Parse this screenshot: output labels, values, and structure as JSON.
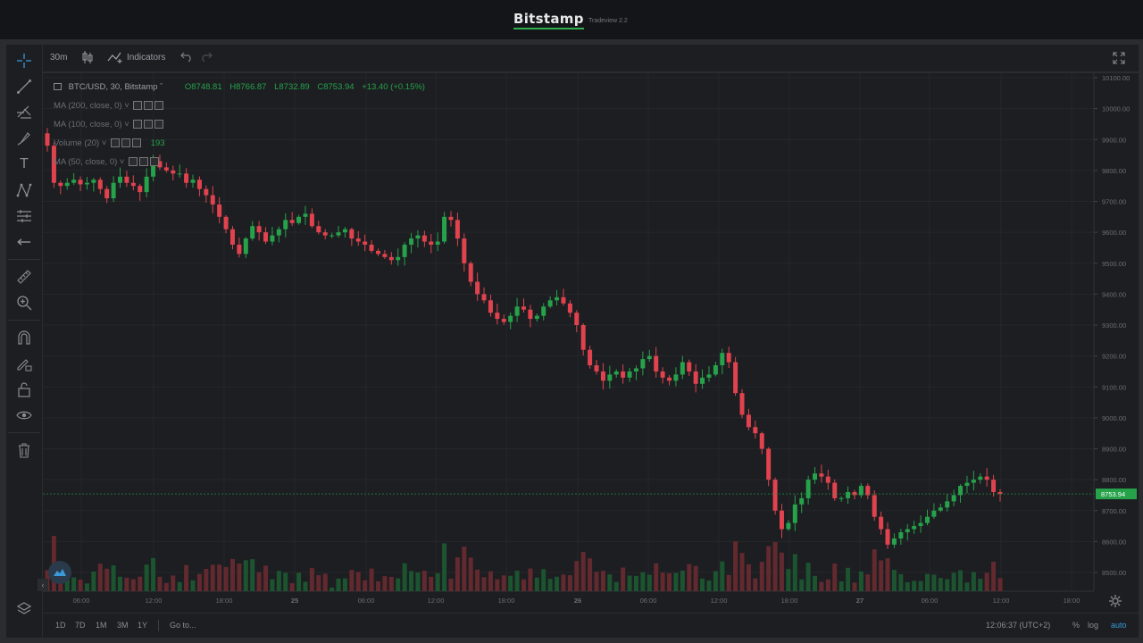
{
  "header": {
    "brand": "Bitstamp",
    "version": "Tradeview 2.2"
  },
  "toolbar": {
    "interval": "30m",
    "indicators_label": "Indicators"
  },
  "legend": {
    "symbol": "BTC/USD, 30, Bitstamp",
    "open": "O8748.81",
    "high": "H8766.87",
    "low": "L8732.89",
    "close": "C8753.94",
    "change": "+13.40 (+0.15%)",
    "studies": [
      {
        "label": "MA (200, close, 0)",
        "value": ""
      },
      {
        "label": "MA (100, close, 0)",
        "value": ""
      },
      {
        "label": "Volume (20)",
        "value": "193"
      },
      {
        "label": "MA (50, close, 0)",
        "value": ""
      }
    ]
  },
  "price_badge": "8753.94",
  "y_ticks": [
    "10100.00",
    "10000.00",
    "9900.00",
    "9800.00",
    "9700.00",
    "9600.00",
    "9500.00",
    "9400.00",
    "9300.00",
    "9200.00",
    "9100.00",
    "9000.00",
    "8900.00",
    "8800.00",
    "8700.00",
    "8600.00",
    "8500.00"
  ],
  "x_ticks": [
    "06:00",
    "12:00",
    "18:00",
    "25",
    "06:00",
    "12:00",
    "18:00",
    "26",
    "06:00",
    "12:00",
    "18:00",
    "27",
    "06:00",
    "12:00",
    "18:00"
  ],
  "bottom": {
    "ranges": [
      "1D",
      "7D",
      "1M",
      "3M",
      "1Y"
    ],
    "goto": "Go to...",
    "clock": "12:06:37 (UTC+2)",
    "pct": "%",
    "log": "log",
    "auto": "auto"
  },
  "colors": {
    "up": "#26a24a",
    "down": "#e0434e",
    "bg": "#1c1e22",
    "grid": "#25272b",
    "accent": "#3a9ad9"
  },
  "chart_data": {
    "type": "candlestick",
    "symbol": "BTC/USD",
    "ylim": [
      8450,
      10120
    ],
    "close": [
      9880,
      9760,
      9750,
      9760,
      9770,
      9755,
      9760,
      9770,
      9740,
      9710,
      9760,
      9780,
      9760,
      9750,
      9730,
      9780,
      9830,
      9810,
      9800,
      9790,
      9790,
      9760,
      9770,
      9740,
      9720,
      9690,
      9650,
      9610,
      9560,
      9530,
      9580,
      9620,
      9600,
      9570,
      9590,
      9610,
      9640,
      9630,
      9650,
      9660,
      9620,
      9600,
      9590,
      9590,
      9600,
      9610,
      9580,
      9570,
      9560,
      9540,
      9530,
      9520,
      9510,
      9520,
      9560,
      9580,
      9590,
      9570,
      9560,
      9570,
      9650,
      9640,
      9580,
      9500,
      9440,
      9400,
      9380,
      9340,
      9320,
      9310,
      9330,
      9360,
      9350,
      9320,
      9330,
      9360,
      9380,
      9390,
      9370,
      9340,
      9300,
      9220,
      9170,
      9150,
      9120,
      9140,
      9150,
      9130,
      9150,
      9160,
      9190,
      9200,
      9150,
      9130,
      9120,
      9140,
      9180,
      9150,
      9110,
      9130,
      9140,
      9170,
      9210,
      9180,
      9080,
      9010,
      8970,
      8950,
      8900,
      8800,
      8700,
      8640,
      8660,
      8720,
      8740,
      8800,
      8820,
      8810,
      8790,
      8740,
      8740,
      8760,
      8750,
      8780,
      8750,
      8680,
      8640,
      8590,
      8610,
      8630,
      8640,
      8650,
      8660,
      8680,
      8700,
      8710,
      8730,
      8750,
      8780,
      8790,
      8800,
      8810,
      8800,
      8760,
      8754
    ]
  }
}
